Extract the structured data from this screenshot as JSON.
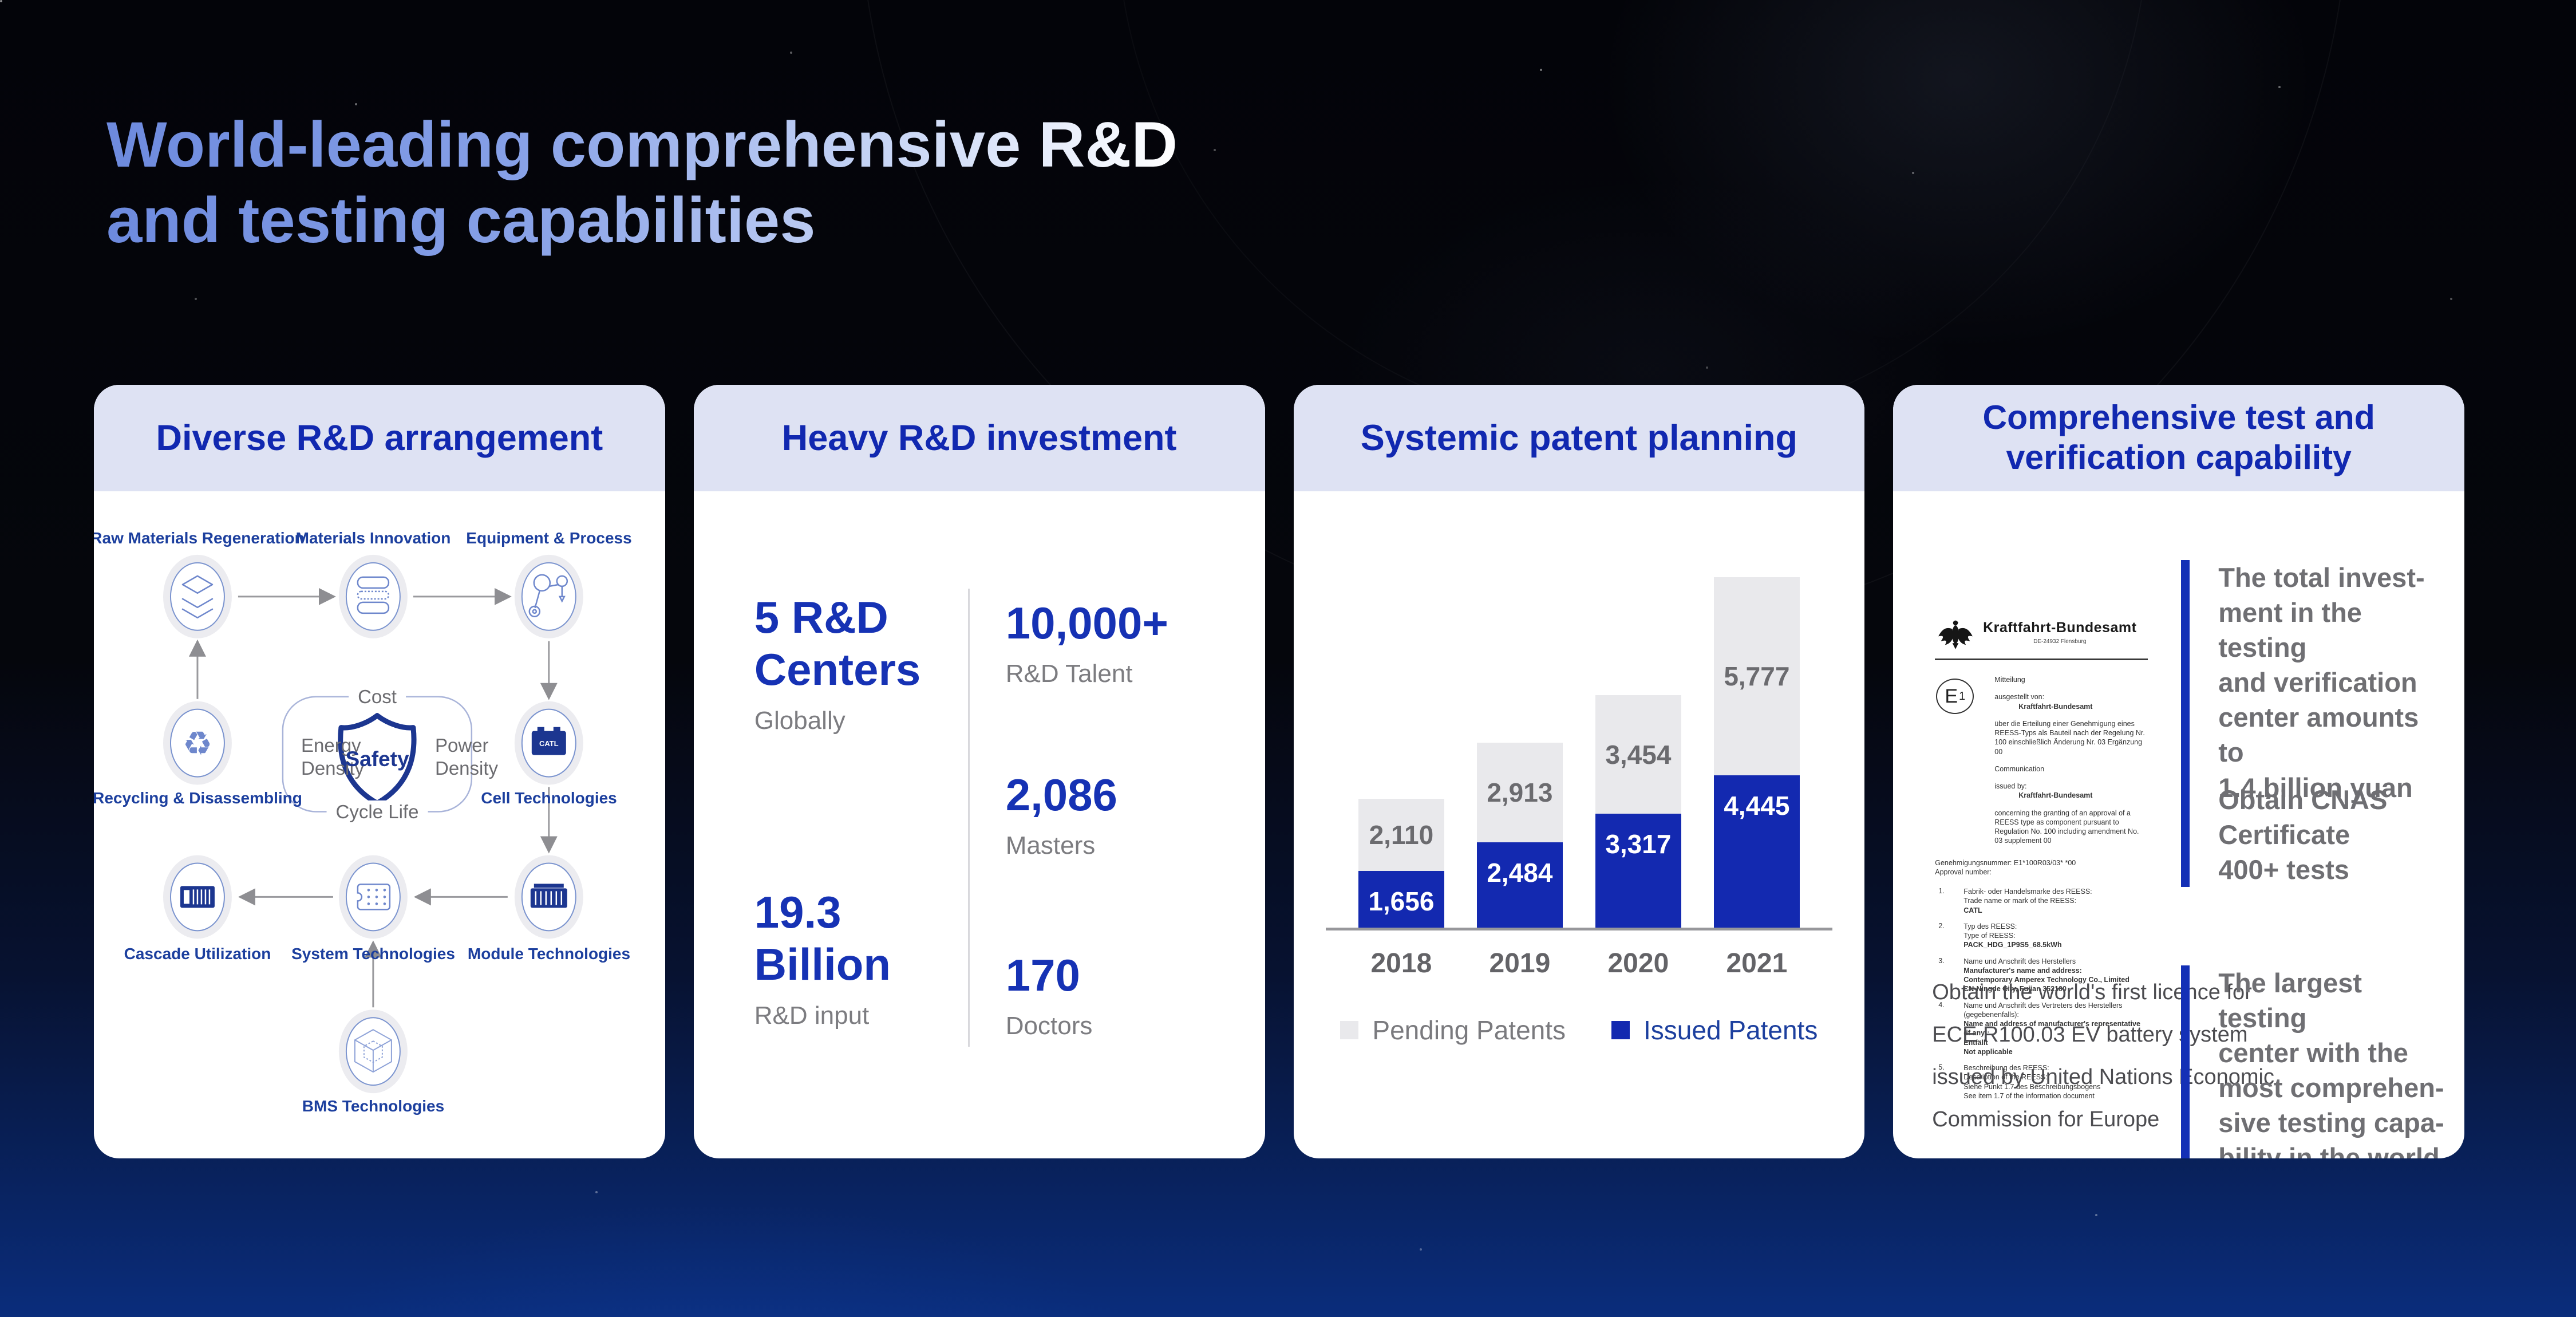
{
  "title": {
    "line1": "World-leading comprehensive R&D",
    "line2": "and testing capabilities"
  },
  "colors": {
    "accent_blue": "#1329b0",
    "header_bg": "#dee2f3",
    "header_text": "#1128b0",
    "navy_shield": "#1c3690",
    "diagram_label_blue": "#1c3f9e",
    "pending_gray": "#e9e9ec",
    "background_bottom_blue": "#0a2d7c",
    "title_gradient_start": "#6d8ade",
    "title_gradient_end": "#ffffff"
  },
  "cards": {
    "rd_arrangement": {
      "header": "Diverse R&D arrangement",
      "node_labels": {
        "raw": "Raw Materials Regeneration",
        "materials": "Materials Innovation",
        "equipment": "Equipment & Process",
        "recycling": "Recycling & Disassembling",
        "cell": "Cell Technologies",
        "cascade": "Cascade Utilization",
        "system": "System Technologies",
        "module": "Module Technologies",
        "bms": "BMS Technologies"
      },
      "center": {
        "top": "Cost",
        "left": "Energy\nDensity",
        "right": "Power\nDensity",
        "bottom": "Cycle Life",
        "shield": "Safety"
      },
      "cell_brand": "CATL"
    },
    "rd_investment": {
      "header": "Heavy R&D investment",
      "left_stats": [
        {
          "value": "5 R&D\nCenters",
          "label": "Globally"
        },
        {
          "value": "19.3\nBillion",
          "label": "R&D input"
        }
      ],
      "right_stats": [
        {
          "value": "10,000+",
          "label": "R&D Talent"
        },
        {
          "value": "2,086",
          "label": "Masters"
        },
        {
          "value": "170",
          "label": "Doctors"
        }
      ]
    },
    "patent_planning": {
      "header": "Systemic patent planning"
    },
    "test_capability": {
      "header": "Comprehensive test and\nverification capability",
      "certificate": {
        "agency": "Kraftfahrt-Bundesamt",
        "agency_sub": "DE-24932 Flensburg",
        "e_mark_letter": "E",
        "e_mark_number": "1",
        "intro": [
          {
            "t": "Mitteilung",
            "b": false,
            "ind": false,
            "gap": false
          },
          {
            "t": "ausgestellt von:",
            "b": false,
            "ind": false,
            "gap": true
          },
          {
            "t": "Kraftfahrt-Bundesamt",
            "b": true,
            "ind": true,
            "gap": false
          },
          {
            "t": "über die Erteilung einer Genehmigung eines REESS-Typs als Bauteil nach der Regelung Nr. 100 einschließlich Änderung Nr. 03 Ergänzung 00",
            "b": false,
            "ind": false,
            "gap": true
          },
          {
            "t": "Communication",
            "b": false,
            "ind": false,
            "gap": true
          },
          {
            "t": "issued by:",
            "b": false,
            "ind": false,
            "gap": true
          },
          {
            "t": "Kraftfahrt-Bundesamt",
            "b": true,
            "ind": true,
            "gap": false
          },
          {
            "t": "concerning the granting of an approval of a REESS type as component pursuant to Regulation No. 100 including amendment No. 03 supplement 00",
            "b": false,
            "ind": false,
            "gap": true
          }
        ],
        "approval": [
          "Genehmigungsnummer: E1*100R03/03*      *00",
          "Approval number:"
        ],
        "items": [
          {
            "n": "1.",
            "lines": [
              {
                "t": "Fabrik- oder Handelsmarke des REESS:",
                "b": false
              },
              {
                "t": "Trade name or mark of the REESS:",
                "b": false
              },
              {
                "t": "CATL",
                "b": true
              }
            ]
          },
          {
            "n": "2.",
            "lines": [
              {
                "t": "Typ des REESS:",
                "b": false
              },
              {
                "t": "Type of REESS:",
                "b": false
              },
              {
                "t": "PACK_HDG_1P9S5_68.5kWh",
                "b": true
              }
            ]
          },
          {
            "n": "3.",
            "lines": [
              {
                "t": "Name und Anschrift des Herstellers",
                "b": false
              },
              {
                "t": "Manufacturer's name and address:",
                "b": true
              },
              {
                "t": "Contemporary Amperex Technology Co., Limited",
                "b": true
              },
              {
                "t": "CN-Ningde City, Fujian 352100",
                "b": true
              }
            ]
          },
          {
            "n": "4.",
            "lines": [
              {
                "t": "Name und Anschrift des Vertreters des Herstellers (gegebenenfalls):",
                "b": false
              },
              {
                "t": "Name and address of manufacturer's representative (if any):",
                "b": true
              },
              {
                "t": "Entfällt",
                "b": true
              },
              {
                "t": "Not applicable",
                "b": true
              }
            ]
          },
          {
            "n": "5.",
            "lines": [
              {
                "t": "Beschreibung des REESS:",
                "b": false
              },
              {
                "t": "Description of the REESS:",
                "b": false
              },
              {
                "t": "Siehe Punkt 1.7 des Beschreibungsbogens",
                "b": false
              },
              {
                "t": "See item 1.7 of the information document",
                "b": false
              }
            ]
          }
        ]
      },
      "ece_note": "Obtain the world's first licence for\nECE R100.03 EV battery system\nissued by United Nations Economic\nCommission for Europe",
      "highlights": [
        {
          "text": "The total invest-\nment in the testing\nand verification\ncenter amounts to\n1.4 billion yuan"
        },
        {
          "text": "Obtain CNAS\nCertificate\n400+ tests"
        },
        {
          "text": "The largest testing\ncenter with the\nmost comprehen-\nsive testing capa-\nbility in the world"
        }
      ]
    }
  },
  "chart_data": {
    "type": "bar",
    "stacked": true,
    "title": "Systemic patent planning",
    "categories": [
      "2018",
      "2019",
      "2020",
      "2021"
    ],
    "series": [
      {
        "name": "Issued Patents",
        "color": "#1329b0",
        "values": [
          1656,
          2484,
          3317,
          4445
        ]
      },
      {
        "name": "Pending Patents",
        "color": "#e9e9ec",
        "values": [
          2110,
          2913,
          3454,
          5777
        ]
      }
    ],
    "totals": [
      3766,
      5397,
      6771,
      10222
    ],
    "value_labels": true,
    "legend_position": "bottom",
    "grid": false,
    "axis_line_color": "#97979b"
  }
}
